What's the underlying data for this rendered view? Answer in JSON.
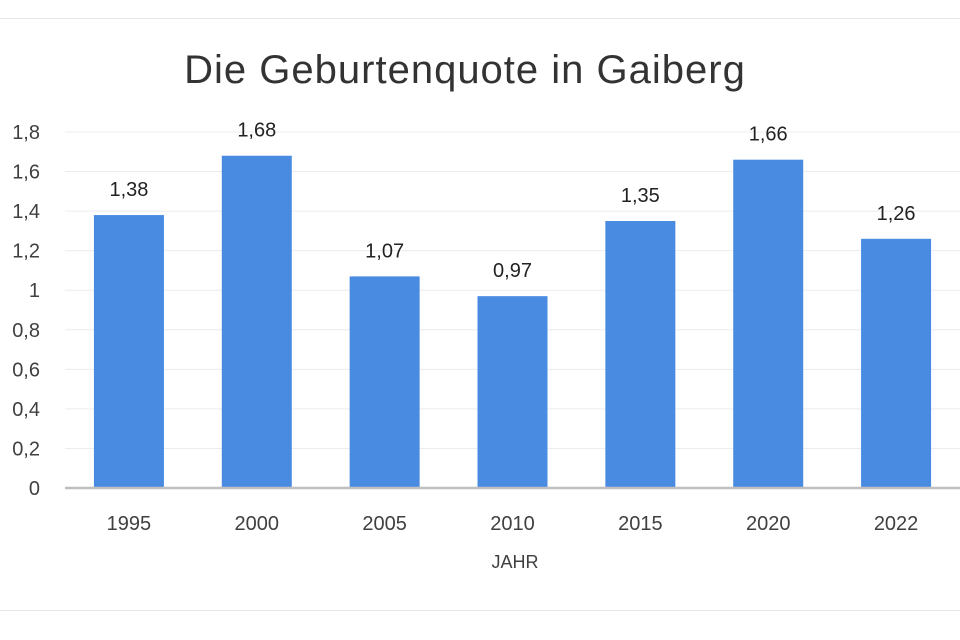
{
  "chart_data": {
    "type": "bar",
    "title": "Die Geburtenquote in Gaiberg",
    "xlabel": "JAHR",
    "ylabel": "",
    "categories": [
      "1995",
      "2000",
      "2005",
      "2010",
      "2015",
      "2020",
      "2022"
    ],
    "values": [
      1.38,
      1.68,
      1.07,
      0.97,
      1.35,
      1.66,
      1.26
    ],
    "value_labels": [
      "1,38",
      "1,68",
      "1,07",
      "0,97",
      "1,35",
      "1,66",
      "1,26"
    ],
    "yticks": [
      "0",
      "0,2",
      "0,4",
      "0,6",
      "0,8",
      "1",
      "1,2",
      "1,4",
      "1,6",
      "1,8"
    ],
    "ylim": [
      0,
      1.8
    ],
    "grid": true,
    "legend": "none",
    "colors": {
      "bar": "#4a8be2",
      "grid": "#ececec",
      "axis": "#bfbfbf"
    }
  }
}
